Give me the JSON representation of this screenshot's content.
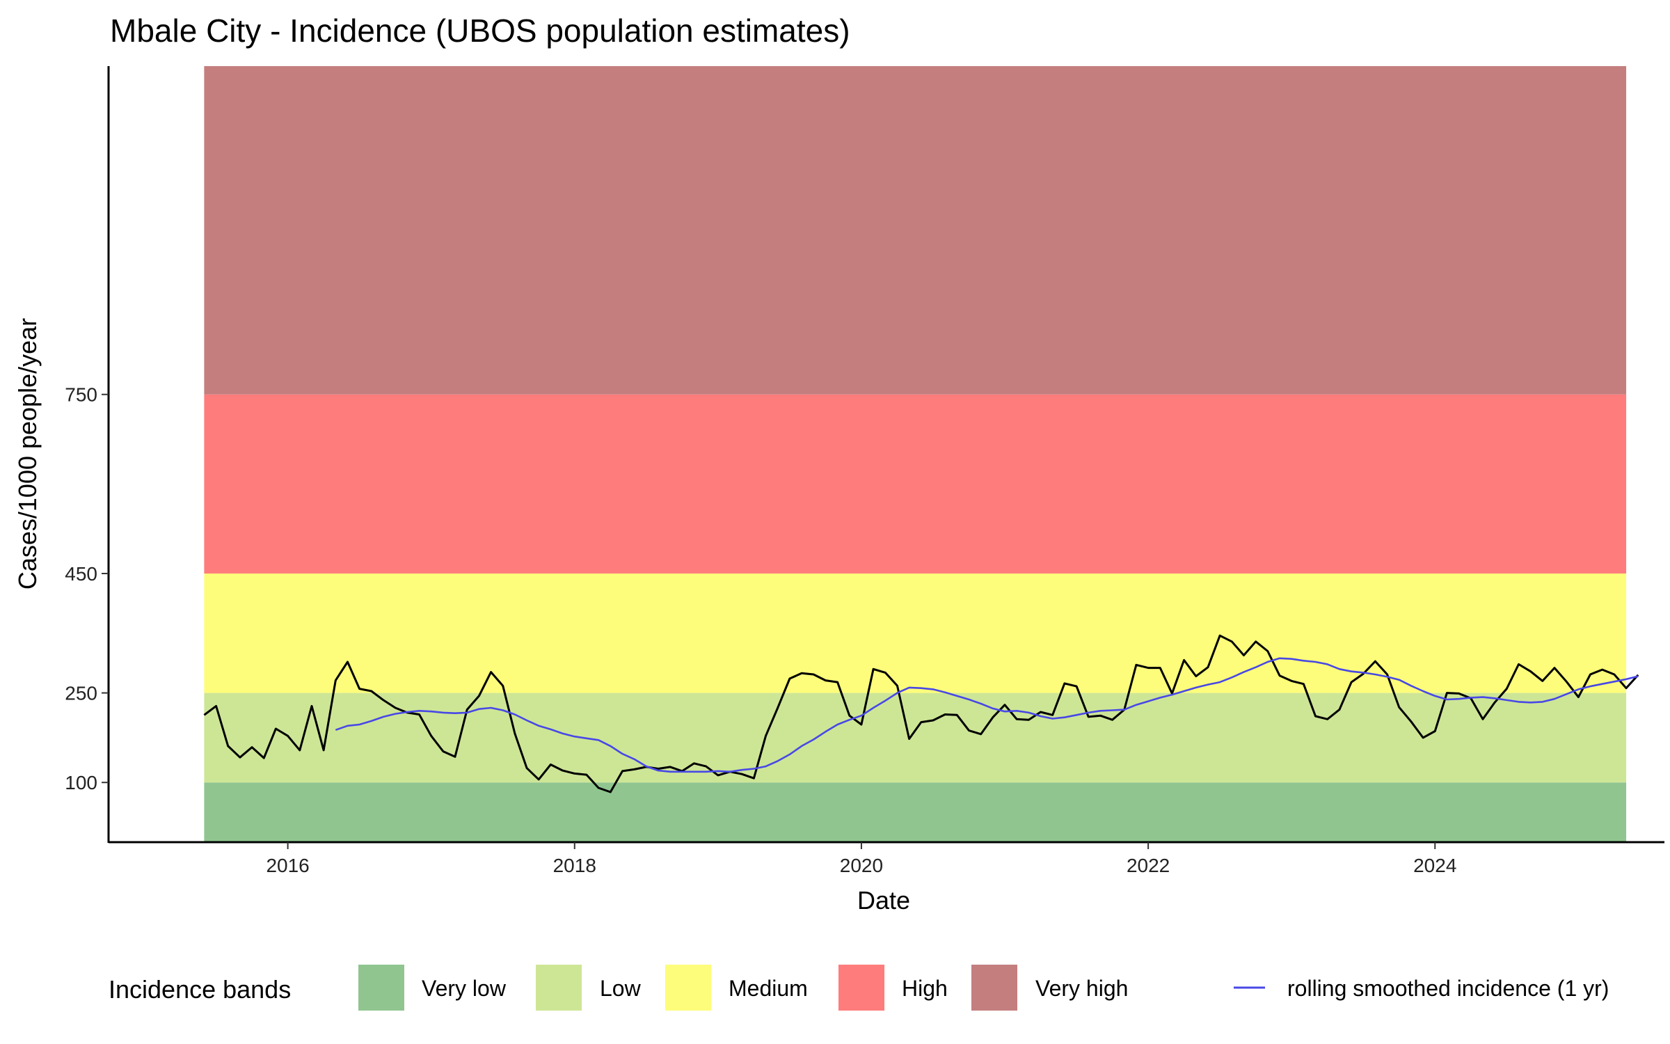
{
  "chart_data": {
    "type": "line",
    "title": "Mbale City - Incidence (UBOS population estimates)",
    "xlabel": "Date",
    "ylabel": "Cases/1000 people/year",
    "x_ticks": [
      "2016",
      "2018",
      "2020",
      "2022",
      "2024"
    ],
    "y_ticks": [
      100,
      250,
      450,
      750
    ],
    "ylim": [
      0,
      1300
    ],
    "xlim_years": [
      2014.75,
      2025.6
    ],
    "grid": false,
    "legend_position": "bottom",
    "bands": {
      "legend_title": "Incidence bands",
      "items": [
        {
          "label": "Very low",
          "from": 0,
          "to": 100,
          "color": "#90c590"
        },
        {
          "label": "Low",
          "from": 100,
          "to": 250,
          "color": "#cde696"
        },
        {
          "label": "Medium",
          "from": 250,
          "to": 450,
          "color": "#fdfd7b"
        },
        {
          "label": "High",
          "from": 450,
          "to": 750,
          "color": "#ff7c7c"
        },
        {
          "label": "Very high",
          "from": 750,
          "to": 1300,
          "color": "#c47e7e"
        }
      ],
      "x_start": "2015-06",
      "x_end": "2025-05"
    },
    "series": [
      {
        "kind": "monthly",
        "color": "#000000",
        "points": [
          [
            "2015-06",
            213
          ],
          [
            "2015-07",
            228
          ],
          [
            "2015-08",
            161
          ],
          [
            "2015-09",
            142
          ],
          [
            "2015-10",
            159
          ],
          [
            "2015-11",
            141
          ],
          [
            "2015-12",
            190
          ],
          [
            "2016-01",
            178
          ],
          [
            "2016-02",
            154
          ],
          [
            "2016-03",
            228
          ],
          [
            "2016-04",
            154
          ],
          [
            "2016-05",
            271
          ],
          [
            "2016-06",
            302
          ],
          [
            "2016-07",
            257
          ],
          [
            "2016-08",
            253
          ],
          [
            "2016-09",
            238
          ],
          [
            "2016-10",
            225
          ],
          [
            "2016-11",
            217
          ],
          [
            "2016-12",
            214
          ],
          [
            "2017-01",
            178
          ],
          [
            "2017-02",
            152
          ],
          [
            "2017-03",
            143
          ],
          [
            "2017-04",
            222
          ],
          [
            "2017-05",
            245
          ],
          [
            "2017-06",
            285
          ],
          [
            "2017-07",
            262
          ],
          [
            "2017-08",
            182
          ],
          [
            "2017-09",
            124
          ],
          [
            "2017-10",
            105
          ],
          [
            "2017-11",
            130
          ],
          [
            "2017-12",
            120
          ],
          [
            "2018-01",
            115
          ],
          [
            "2018-02",
            113
          ],
          [
            "2018-03",
            91
          ],
          [
            "2018-04",
            84
          ],
          [
            "2018-05",
            119
          ],
          [
            "2018-06",
            122
          ],
          [
            "2018-07",
            126
          ],
          [
            "2018-08",
            123
          ],
          [
            "2018-09",
            126
          ],
          [
            "2018-10",
            119
          ],
          [
            "2018-11",
            132
          ],
          [
            "2018-12",
            127
          ],
          [
            "2019-01",
            112
          ],
          [
            "2019-02",
            118
          ],
          [
            "2019-03",
            114
          ],
          [
            "2019-04",
            107
          ],
          [
            "2019-05",
            178
          ],
          [
            "2019-06",
            225
          ],
          [
            "2019-07",
            274
          ],
          [
            "2019-08",
            283
          ],
          [
            "2019-09",
            281
          ],
          [
            "2019-10",
            271
          ],
          [
            "2019-11",
            268
          ],
          [
            "2019-12",
            212
          ],
          [
            "2020-01",
            197
          ],
          [
            "2020-02",
            290
          ],
          [
            "2020-03",
            284
          ],
          [
            "2020-04",
            262
          ],
          [
            "2020-05",
            173
          ],
          [
            "2020-06",
            201
          ],
          [
            "2020-07",
            204
          ],
          [
            "2020-08",
            214
          ],
          [
            "2020-09",
            213
          ],
          [
            "2020-10",
            187
          ],
          [
            "2020-11",
            181
          ],
          [
            "2020-12",
            209
          ],
          [
            "2021-01",
            230
          ],
          [
            "2021-02",
            206
          ],
          [
            "2021-03",
            205
          ],
          [
            "2021-04",
            218
          ],
          [
            "2021-05",
            213
          ],
          [
            "2021-06",
            266
          ],
          [
            "2021-07",
            261
          ],
          [
            "2021-08",
            210
          ],
          [
            "2021-09",
            212
          ],
          [
            "2021-10",
            205
          ],
          [
            "2021-11",
            222
          ],
          [
            "2021-12",
            297
          ],
          [
            "2022-01",
            292
          ],
          [
            "2022-02",
            292
          ],
          [
            "2022-03",
            249
          ],
          [
            "2022-04",
            305
          ],
          [
            "2022-05",
            278
          ],
          [
            "2022-06",
            293
          ],
          [
            "2022-07",
            346
          ],
          [
            "2022-08",
            336
          ],
          [
            "2022-09",
            313
          ],
          [
            "2022-10",
            336
          ],
          [
            "2022-11",
            320
          ],
          [
            "2022-12",
            279
          ],
          [
            "2023-01",
            270
          ],
          [
            "2023-02",
            265
          ],
          [
            "2023-03",
            211
          ],
          [
            "2023-04",
            206
          ],
          [
            "2023-05",
            222
          ],
          [
            "2023-06",
            268
          ],
          [
            "2023-07",
            282
          ],
          [
            "2023-08",
            303
          ],
          [
            "2023-09",
            281
          ],
          [
            "2023-10",
            226
          ],
          [
            "2023-11",
            202
          ],
          [
            "2023-12",
            175
          ],
          [
            "2024-01",
            186
          ],
          [
            "2024-02",
            250
          ],
          [
            "2024-03",
            249
          ],
          [
            "2024-04",
            241
          ],
          [
            "2024-05",
            206
          ],
          [
            "2024-06",
            234
          ],
          [
            "2024-07",
            257
          ],
          [
            "2024-08",
            298
          ],
          [
            "2024-09",
            286
          ],
          [
            "2024-10",
            270
          ],
          [
            "2024-11",
            292
          ],
          [
            "2024-12",
            269
          ],
          [
            "2025-01",
            243
          ],
          [
            "2025-02",
            281
          ],
          [
            "2025-03",
            289
          ],
          [
            "2025-04",
            281
          ],
          [
            "2025-05",
            258
          ],
          [
            "2025-06",
            280
          ]
        ]
      },
      {
        "name": "rolling smoothed incidence (1 yr)",
        "kind": "rolling",
        "color": "#4848e6",
        "points": [
          [
            "2016-05",
            188
          ],
          [
            "2016-06",
            195
          ],
          [
            "2016-07",
            197
          ],
          [
            "2016-08",
            203
          ],
          [
            "2016-09",
            210
          ],
          [
            "2016-10",
            215
          ],
          [
            "2016-11",
            218
          ],
          [
            "2016-12",
            220
          ],
          [
            "2017-01",
            219
          ],
          [
            "2017-02",
            217
          ],
          [
            "2017-03",
            216
          ],
          [
            "2017-04",
            217
          ],
          [
            "2017-05",
            223
          ],
          [
            "2017-06",
            225
          ],
          [
            "2017-07",
            221
          ],
          [
            "2017-08",
            214
          ],
          [
            "2017-09",
            204
          ],
          [
            "2017-10",
            195
          ],
          [
            "2017-11",
            189
          ],
          [
            "2017-12",
            182
          ],
          [
            "2018-01",
            177
          ],
          [
            "2018-02",
            174
          ],
          [
            "2018-03",
            171
          ],
          [
            "2018-04",
            161
          ],
          [
            "2018-05",
            148
          ],
          [
            "2018-06",
            139
          ],
          [
            "2018-07",
            127
          ],
          [
            "2018-08",
            120
          ],
          [
            "2018-09",
            118
          ],
          [
            "2018-10",
            118
          ],
          [
            "2018-11",
            118
          ],
          [
            "2018-12",
            118
          ],
          [
            "2019-01",
            119
          ],
          [
            "2019-02",
            118
          ],
          [
            "2019-03",
            121
          ],
          [
            "2019-04",
            123
          ],
          [
            "2019-05",
            127
          ],
          [
            "2019-06",
            136
          ],
          [
            "2019-07",
            147
          ],
          [
            "2019-08",
            161
          ],
          [
            "2019-09",
            172
          ],
          [
            "2019-10",
            185
          ],
          [
            "2019-11",
            197
          ],
          [
            "2019-12",
            205
          ],
          [
            "2020-01",
            212
          ],
          [
            "2020-02",
            225
          ],
          [
            "2020-03",
            237
          ],
          [
            "2020-04",
            250
          ],
          [
            "2020-05",
            259
          ],
          [
            "2020-06",
            258
          ],
          [
            "2020-07",
            256
          ],
          [
            "2020-08",
            251
          ],
          [
            "2020-09",
            245
          ],
          [
            "2020-10",
            239
          ],
          [
            "2020-11",
            232
          ],
          [
            "2020-12",
            224
          ],
          [
            "2021-01",
            219
          ],
          [
            "2021-02",
            220
          ],
          [
            "2021-03",
            217
          ],
          [
            "2021-04",
            211
          ],
          [
            "2021-05",
            207
          ],
          [
            "2021-06",
            209
          ],
          [
            "2021-07",
            213
          ],
          [
            "2021-08",
            217
          ],
          [
            "2021-09",
            220
          ],
          [
            "2021-10",
            221
          ],
          [
            "2021-11",
            222
          ],
          [
            "2021-12",
            230
          ],
          [
            "2022-01",
            236
          ],
          [
            "2022-02",
            242
          ],
          [
            "2022-03",
            247
          ],
          [
            "2022-04",
            253
          ],
          [
            "2022-05",
            259
          ],
          [
            "2022-06",
            264
          ],
          [
            "2022-07",
            268
          ],
          [
            "2022-08",
            276
          ],
          [
            "2022-09",
            285
          ],
          [
            "2022-10",
            293
          ],
          [
            "2022-11",
            302
          ],
          [
            "2022-12",
            308
          ],
          [
            "2023-01",
            307
          ],
          [
            "2023-02",
            304
          ],
          [
            "2023-03",
            302
          ],
          [
            "2023-04",
            298
          ],
          [
            "2023-05",
            290
          ],
          [
            "2023-06",
            286
          ],
          [
            "2023-07",
            284
          ],
          [
            "2023-08",
            281
          ],
          [
            "2023-09",
            277
          ],
          [
            "2023-10",
            272
          ],
          [
            "2023-11",
            262
          ],
          [
            "2023-12",
            253
          ],
          [
            "2024-01",
            245
          ],
          [
            "2024-02",
            239
          ],
          [
            "2024-03",
            240
          ],
          [
            "2024-04",
            242
          ],
          [
            "2024-05",
            243
          ],
          [
            "2024-06",
            241
          ],
          [
            "2024-07",
            238
          ],
          [
            "2024-08",
            235
          ],
          [
            "2024-09",
            234
          ],
          [
            "2024-10",
            235
          ],
          [
            "2024-11",
            240
          ],
          [
            "2024-12",
            248
          ],
          [
            "2025-01",
            256
          ],
          [
            "2025-02",
            261
          ],
          [
            "2025-03",
            265
          ],
          [
            "2025-04",
            269
          ],
          [
            "2025-05",
            273
          ],
          [
            "2025-06",
            278
          ]
        ]
      }
    ]
  }
}
